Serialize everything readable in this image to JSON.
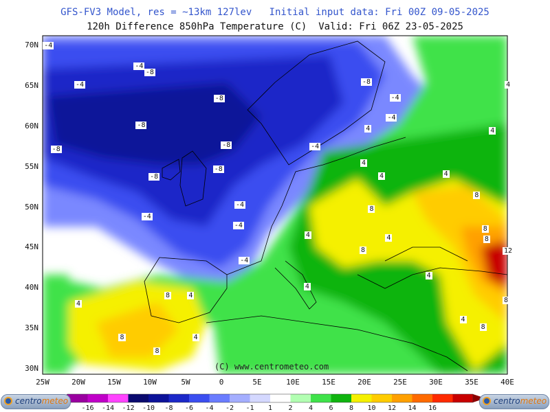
{
  "header": {
    "line1": "GFS-FV3 Model, res = ~13km 127lev   Initial input data: Fri 00Z 09-05-2025",
    "line2": "120h Difference 850hPa Temperature (C)  Valid: Fri 06Z 23-05-2025"
  },
  "credit": "(C) www.centrometeo.com",
  "lat_labels": [
    "70N",
    "65N",
    "60N",
    "55N",
    "50N",
    "45N",
    "40N",
    "35N",
    "30N"
  ],
  "lon_labels": [
    "25W",
    "20W",
    "15W",
    "10W",
    "5W",
    "0",
    "5E",
    "10E",
    "15E",
    "20E",
    "25E",
    "30E",
    "35E",
    "40E"
  ],
  "contour_labels": [
    {
      "text": "-4",
      "lon": -24.4,
      "lat": 69.9
    },
    {
      "text": "-4",
      "lon": -11.7,
      "lat": 67.4
    },
    {
      "text": "-8",
      "lon": -10.2,
      "lat": 66.6
    },
    {
      "text": "-4",
      "lon": -20.0,
      "lat": 65.1
    },
    {
      "text": "-8",
      "lon": -0.5,
      "lat": 63.4
    },
    {
      "text": "-8",
      "lon": -11.4,
      "lat": 60.1
    },
    {
      "text": "-8",
      "lon": 0.5,
      "lat": 57.6
    },
    {
      "text": "-8",
      "lon": -23.3,
      "lat": 57.1
    },
    {
      "text": "-8",
      "lon": -9.6,
      "lat": 53.7
    },
    {
      "text": "-8",
      "lon": -0.6,
      "lat": 54.6
    },
    {
      "text": "-4",
      "lon": 2.4,
      "lat": 50.2
    },
    {
      "text": "-4",
      "lon": -10.6,
      "lat": 48.8
    },
    {
      "text": "-4",
      "lon": 2.2,
      "lat": 47.7
    },
    {
      "text": "-4",
      "lon": 3.0,
      "lat": 43.3
    },
    {
      "text": "-8",
      "lon": 20.1,
      "lat": 65.4
    },
    {
      "text": "-4",
      "lon": 24.1,
      "lat": 63.5
    },
    {
      "text": "-4",
      "lon": 23.6,
      "lat": 61.0
    },
    {
      "text": "-4",
      "lon": 12.9,
      "lat": 57.4
    },
    {
      "text": "4",
      "lon": 20.6,
      "lat": 59.6
    },
    {
      "text": "4",
      "lon": 20.0,
      "lat": 55.4
    },
    {
      "text": "4",
      "lon": 22.5,
      "lat": 53.8
    },
    {
      "text": "4",
      "lon": 31.5,
      "lat": 54.0
    },
    {
      "text": "8",
      "lon": 21.1,
      "lat": 49.7
    },
    {
      "text": "4",
      "lon": 12.2,
      "lat": 46.5
    },
    {
      "text": "8",
      "lon": 19.9,
      "lat": 44.6
    },
    {
      "text": "4",
      "lon": 23.5,
      "lat": 46.1
    },
    {
      "text": "4",
      "lon": 12.1,
      "lat": 40.1
    },
    {
      "text": "4",
      "lon": 29.1,
      "lat": 41.5
    },
    {
      "text": "8",
      "lon": 35.8,
      "lat": 51.4
    },
    {
      "text": "8",
      "lon": 37.0,
      "lat": 47.2
    },
    {
      "text": "8",
      "lon": 37.2,
      "lat": 46.0
    },
    {
      "text": "12",
      "lon": 39.9,
      "lat": 44.5
    },
    {
      "text": "8",
      "lon": 39.9,
      "lat": 38.4
    },
    {
      "text": "4",
      "lon": 33.9,
      "lat": 36.0
    },
    {
      "text": "8",
      "lon": 36.7,
      "lat": 35.1
    },
    {
      "text": "4",
      "lon": -19.9,
      "lat": 38.0
    },
    {
      "text": "8",
      "lon": -7.4,
      "lat": 39.0
    },
    {
      "text": "4",
      "lon": -4.2,
      "lat": 39.0
    },
    {
      "text": "8",
      "lon": -13.8,
      "lat": 33.8
    },
    {
      "text": "4",
      "lon": -3.5,
      "lat": 33.8
    },
    {
      "text": "8",
      "lon": -8.9,
      "lat": 32.1
    },
    {
      "text": "4",
      "lon": 40.2,
      "lat": 65.1
    },
    {
      "text": "4",
      "lon": 38.0,
      "lat": 59.4
    }
  ],
  "colorbar": {
    "labels": [
      "-16",
      "-14",
      "-12",
      "-10",
      "-8",
      "-6",
      "-4",
      "-2",
      "-1",
      "1",
      "2",
      "4",
      "6",
      "8",
      "10",
      "12",
      "14",
      "16"
    ],
    "colors": [
      "#9a00a0",
      "#c000c8",
      "#ff44ff",
      "#0a0a6e",
      "#0c1299",
      "#1c28c8",
      "#3b4ef0",
      "#6a7cff",
      "#a4aeff",
      "#d4d8ff",
      "#ffffff",
      "#b2ffb2",
      "#3fe24a",
      "#0fb40f",
      "#f5f000",
      "#ffcc00",
      "#ffa000",
      "#ff6a00",
      "#ff2a00",
      "#c80000"
    ],
    "arrow_left": "#7a007a",
    "arrow_right": "#8c0000"
  },
  "logos": {
    "brand": "centro",
    "brand2": "meteo"
  }
}
